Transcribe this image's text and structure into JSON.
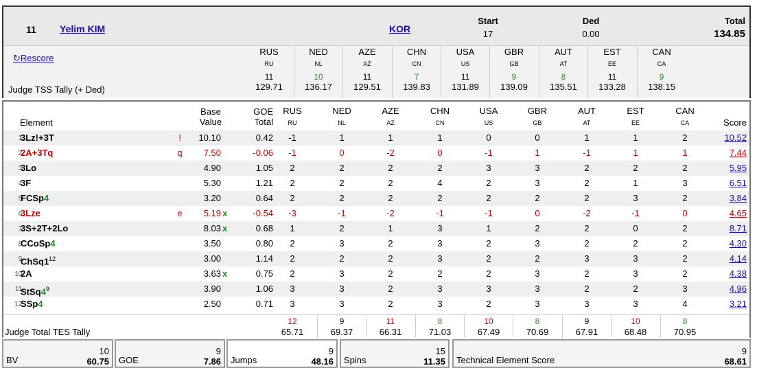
{
  "skater": {
    "rank": "11",
    "name": "Yelim KIM",
    "nation": "KOR"
  },
  "header": {
    "start_label": "Start",
    "start_value": "17",
    "ded_label": "Ded",
    "ded_value": "0.00",
    "total_label": "Total",
    "total_value": "134.85",
    "rescore_label": "Rescore",
    "tally_label": "Judge TSS Tally (+ Ded)"
  },
  "judges": [
    {
      "code": "RUS",
      "sub": "RU",
      "tss_rank": "11",
      "tss": "129.71",
      "tss_color": "black",
      "tes_rank": "12",
      "tes": "65.71",
      "tes_color": "red"
    },
    {
      "code": "NED",
      "sub": "NL",
      "tss_rank": "10",
      "tss": "136.17",
      "tss_color": "green",
      "tes_rank": "9",
      "tes": "69.37",
      "tes_color": "black"
    },
    {
      "code": "AZE",
      "sub": "AZ",
      "tss_rank": "11",
      "tss": "129.51",
      "tss_color": "black",
      "tes_rank": "11",
      "tes": "66.31",
      "tes_color": "red"
    },
    {
      "code": "CHN",
      "sub": "CN",
      "tss_rank": "7",
      "tss": "139.83",
      "tss_color": "green",
      "tes_rank": "8",
      "tes": "71.03",
      "tes_color": "green"
    },
    {
      "code": "USA",
      "sub": "US",
      "tss_rank": "11",
      "tss": "131.89",
      "tss_color": "black",
      "tes_rank": "10",
      "tes": "67.49",
      "tes_color": "red"
    },
    {
      "code": "GBR",
      "sub": "GB",
      "tss_rank": "9",
      "tss": "139.09",
      "tss_color": "green",
      "tes_rank": "8",
      "tes": "70.69",
      "tes_color": "green"
    },
    {
      "code": "AUT",
      "sub": "AT",
      "tss_rank": "8",
      "tss": "135.51",
      "tss_color": "green",
      "tes_rank": "9",
      "tes": "67.91",
      "tes_color": "black"
    },
    {
      "code": "EST",
      "sub": "EE",
      "tss_rank": "11",
      "tss": "133.28",
      "tss_color": "black",
      "tes_rank": "10",
      "tes": "68.48",
      "tes_color": "red"
    },
    {
      "code": "CAN",
      "sub": "CA",
      "tss_rank": "9",
      "tss": "138.15",
      "tss_color": "green",
      "tes_rank": "8",
      "tes": "70.95",
      "tes_color": "green"
    }
  ],
  "table": {
    "element_header": "Element",
    "base_header_1": "Base",
    "base_header_2": "Value",
    "goe_header_1": "GOE",
    "goe_header_2": "Total",
    "score_header": "Score",
    "tes_tally_label": "Judge Total TES Tally"
  },
  "elements": [
    {
      "n": "1.",
      "main": "3Lz!+3T",
      "lvl": "",
      "sup": "",
      "note": "!",
      "bv": "10.10",
      "x": "",
      "goe": "0.42",
      "marks": [
        "-1",
        "1",
        "1",
        "1",
        "0",
        "0",
        "1",
        "1",
        "2"
      ],
      "score": "10.52",
      "red": false
    },
    {
      "n": "2.",
      "main": "2A+3Tq",
      "lvl": "",
      "sup": "",
      "note": "q",
      "bv": "7.50",
      "x": "",
      "goe": "-0.06",
      "marks": [
        "-1",
        "0",
        "-2",
        "0",
        "-1",
        "1",
        "-1",
        "1",
        "1"
      ],
      "score": "7.44",
      "red": true
    },
    {
      "n": "3.",
      "main": "3Lo",
      "lvl": "",
      "sup": "",
      "note": "",
      "bv": "4.90",
      "x": "",
      "goe": "1.05",
      "marks": [
        "2",
        "2",
        "2",
        "2",
        "3",
        "3",
        "2",
        "2",
        "2"
      ],
      "score": "5.95",
      "red": false
    },
    {
      "n": "4.",
      "main": "3F",
      "lvl": "",
      "sup": "",
      "note": "",
      "bv": "5.30",
      "x": "",
      "goe": "1.21",
      "marks": [
        "2",
        "2",
        "2",
        "4",
        "2",
        "3",
        "2",
        "1",
        "3"
      ],
      "score": "6.51",
      "red": false
    },
    {
      "n": "5.",
      "main": "FCSp",
      "lvl": "4",
      "sup": "",
      "note": "",
      "bv": "3.20",
      "x": "",
      "goe": "0.64",
      "marks": [
        "2",
        "2",
        "2",
        "2",
        "2",
        "2",
        "2",
        "3",
        "2"
      ],
      "score": "3.84",
      "red": false
    },
    {
      "n": "6.",
      "main": "3Lze",
      "lvl": "",
      "sup": "",
      "note": "e",
      "bv": "5.19",
      "x": "x",
      "goe": "-0.54",
      "marks": [
        "-3",
        "-1",
        "-2",
        "-1",
        "-1",
        "0",
        "-2",
        "-1",
        "0"
      ],
      "score": "4.65",
      "red": true
    },
    {
      "n": "7.",
      "main": "3S+2T+2Lo",
      "lvl": "",
      "sup": "",
      "note": "",
      "bv": "8.03",
      "x": "x",
      "goe": "0.68",
      "marks": [
        "1",
        "2",
        "1",
        "3",
        "1",
        "2",
        "2",
        "0",
        "2"
      ],
      "score": "8.71",
      "red": false
    },
    {
      "n": "8.",
      "main": "CCoSp",
      "lvl": "4",
      "sup": "",
      "note": "",
      "bv": "3.50",
      "x": "",
      "goe": "0.80",
      "marks": [
        "2",
        "3",
        "2",
        "3",
        "2",
        "3",
        "2",
        "2",
        "2"
      ],
      "score": "4.30",
      "red": false
    },
    {
      "n": "9.",
      "main": "ChSq1",
      "lvl": "",
      "sup": "12",
      "note": "",
      "bv": "3.00",
      "x": "",
      "goe": "1.14",
      "marks": [
        "2",
        "2",
        "2",
        "3",
        "2",
        "2",
        "3",
        "3",
        "2"
      ],
      "score": "4.14",
      "red": false
    },
    {
      "n": "10.",
      "main": "2A",
      "lvl": "",
      "sup": "",
      "note": "",
      "bv": "3.63",
      "x": "x",
      "goe": "0.75",
      "marks": [
        "2",
        "3",
        "2",
        "2",
        "2",
        "3",
        "2",
        "3",
        "2"
      ],
      "score": "4.38",
      "red": false
    },
    {
      "n": "11.",
      "main": "StSq",
      "lvl": "4",
      "sup": "9",
      "note": "",
      "bv": "3.90",
      "x": "",
      "goe": "1.06",
      "marks": [
        "3",
        "3",
        "2",
        "3",
        "3",
        "3",
        "2",
        "2",
        "3"
      ],
      "score": "4.96",
      "red": false
    },
    {
      "n": "12.",
      "main": "SSp",
      "lvl": "4",
      "sup": "",
      "note": "",
      "bv": "2.50",
      "x": "",
      "goe": "0.71",
      "marks": [
        "3",
        "3",
        "2",
        "3",
        "2",
        "3",
        "3",
        "3",
        "4"
      ],
      "score": "3.21",
      "red": false
    }
  ],
  "summary": [
    {
      "rank": "10",
      "value": "60.75",
      "label": "BV"
    },
    {
      "rank": "9",
      "value": "7.86",
      "label": "GOE"
    },
    {
      "rank": "9",
      "value": "48.16",
      "label": "Jumps"
    },
    {
      "rank": "15",
      "value": "11.35",
      "label": "Spins"
    },
    {
      "rank": "9",
      "value": "68.61",
      "label": "Technical Element Score"
    }
  ],
  "colors": {
    "red": "#c00000",
    "green": "#2a8a2a",
    "link": "#1a0dab"
  }
}
